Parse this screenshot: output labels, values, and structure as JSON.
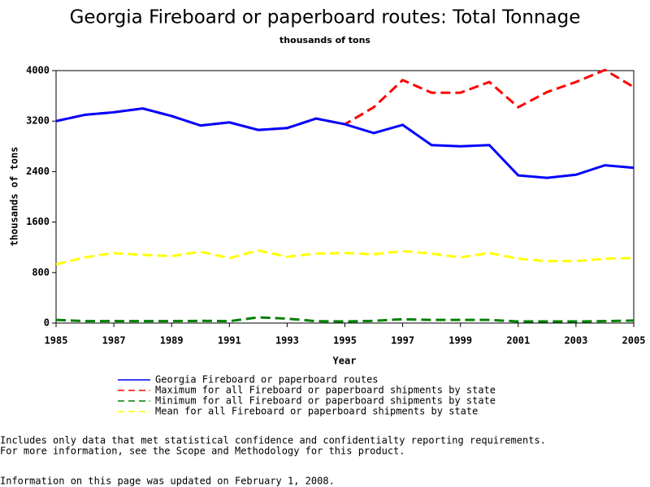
{
  "chart_data": {
    "type": "line",
    "title": "Georgia Fireboard or paperboard routes: Total Tonnage",
    "subtitle": "thousands of tons",
    "y_label": "thousands of tons",
    "x_label": "Year",
    "x": [
      1985,
      1986,
      1987,
      1988,
      1989,
      1990,
      1991,
      1992,
      1993,
      1994,
      1995,
      1996,
      1997,
      1998,
      1999,
      2000,
      2001,
      2002,
      2003,
      2004,
      2005
    ],
    "series": [
      {
        "name": "Georgia Fireboard or paperboard routes",
        "color": "#0000ff",
        "line_style": "solid",
        "values": [
          3200,
          3300,
          3340,
          3400,
          3280,
          3130,
          3180,
          3060,
          3090,
          3240,
          3150,
          3010,
          3140,
          2820,
          2800,
          2820,
          2340,
          2300,
          2350,
          2500,
          2460
        ]
      },
      {
        "name": "Maximum for all Fireboard or paperboard shipments by state",
        "color": "#ff0000",
        "line_style": "dashed",
        "values": [
          3200,
          3300,
          3340,
          3400,
          3280,
          3130,
          3180,
          3060,
          3090,
          3240,
          3150,
          3420,
          3850,
          3650,
          3650,
          3820,
          3420,
          3660,
          3820,
          4010,
          3740
        ]
      },
      {
        "name": "Minimum for all Fireboard or paperboard shipments by state",
        "color": "#008000",
        "line_style": "dashed",
        "values": [
          50,
          30,
          30,
          30,
          30,
          35,
          30,
          90,
          70,
          30,
          25,
          35,
          60,
          50,
          50,
          50,
          25,
          25,
          25,
          30,
          40
        ]
      },
      {
        "name": "Mean for all Fireboard or paperboard shipments by state",
        "color": "#ffff00",
        "line_style": "dashed",
        "values": [
          930,
          1040,
          1110,
          1080,
          1060,
          1130,
          1030,
          1150,
          1050,
          1100,
          1110,
          1090,
          1140,
          1100,
          1040,
          1110,
          1020,
          980,
          980,
          1020,
          1030
        ]
      }
    ],
    "xlim": [
      1985,
      2005
    ],
    "xticks": [
      1985,
      1987,
      1989,
      1991,
      1993,
      1995,
      1997,
      1999,
      2001,
      2003,
      2005
    ],
    "ylim": [
      0,
      4000
    ],
    "yticks": [
      0,
      800,
      1600,
      2400,
      3200,
      4000
    ],
    "notes": [
      "Includes only data that met statistical confidence and confidentialty reporting requirements.",
      "For more information, see the Scope and Methodology for this product.",
      "Information on this page was updated on February 1, 2008."
    ]
  }
}
